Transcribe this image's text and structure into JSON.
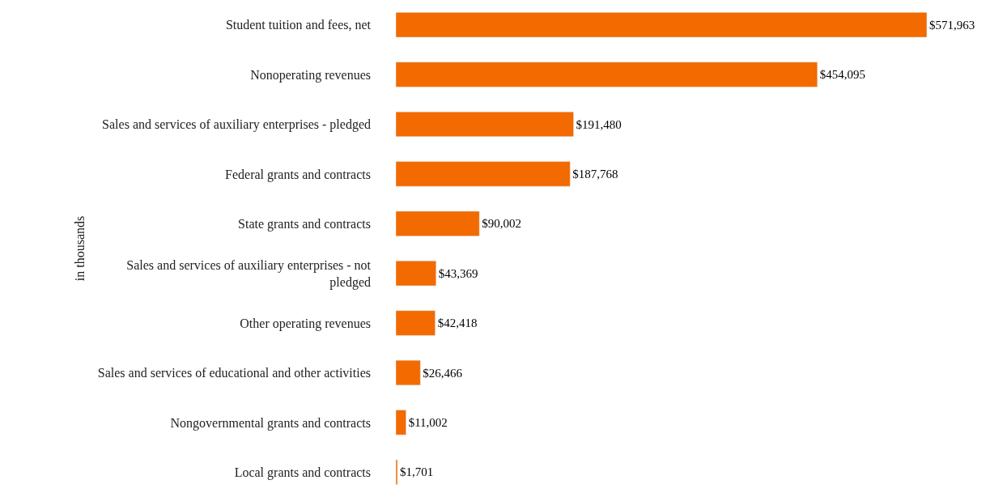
{
  "chart_data": {
    "type": "bar",
    "orientation": "horizontal",
    "ylabel": "in thousands",
    "categories": [
      "Student tuition and fees, net",
      "Nonoperating revenues",
      "Sales and services of auxiliary enterprises - pledged",
      "Federal grants and contracts",
      "State grants and contracts",
      "Sales and services of auxiliary enterprises - not pledged",
      "Other operating revenues",
      "Sales and services of educational and other activities",
      "Nongovernmental grants and contracts",
      "Local grants and contracts"
    ],
    "values": [
      571963,
      454095,
      191480,
      187768,
      90002,
      43369,
      42418,
      26466,
      11002,
      1701
    ],
    "value_labels": [
      "$571,963",
      "$454,095",
      "$191,480",
      "$187,768",
      "$90,002",
      "$43,369",
      "$42,418",
      "$26,466",
      "$11,002",
      "$1,701"
    ],
    "color": "#f26a00",
    "xlim": [
      0,
      640000
    ],
    "tick_labels": "y"
  }
}
